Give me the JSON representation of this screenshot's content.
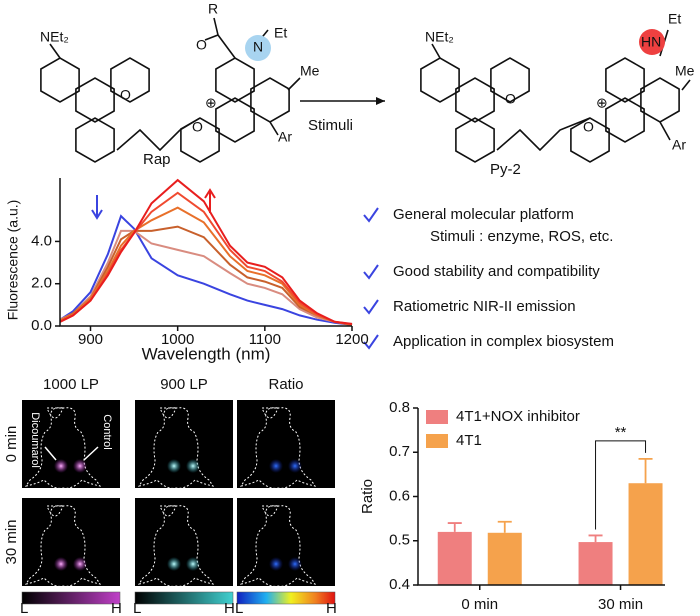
{
  "scheme": {
    "reactant": {
      "amine": "NEt₂",
      "acyl_r": "R",
      "carbonyl_o": "O",
      "nitrogen": "N",
      "ethyl": "Et",
      "methyl": "Me",
      "ring_o": "O",
      "oxonium": "O",
      "charge": "⊕",
      "aryl": "Ar",
      "name": "Rap"
    },
    "stimulus": "Stimuli",
    "product": {
      "amine": "NEt₂",
      "nitrogen": "HN",
      "ethyl": "Et",
      "methyl": "Me",
      "ring_o": "O",
      "oxonium": "O",
      "charge": "⊕",
      "aryl": "Ar",
      "name": "Py-2"
    }
  },
  "features": [
    {
      "text": "General molecular platform",
      "detail": "Stimuli : enzyme, ROS, etc."
    },
    {
      "text": "Good stability and compatibility"
    },
    {
      "text": "Ratiometric NIR-II emission"
    },
    {
      "text": "Application in complex biosystem"
    }
  ],
  "imaging": {
    "columns": [
      "1000 LP",
      "900 LP",
      "Ratio"
    ],
    "rows": [
      "0 min",
      "30 min"
    ],
    "labels": [
      "Dicoumarol",
      "Control"
    ],
    "scale": {
      "low": "L",
      "high": "H"
    }
  },
  "chart_data": [
    {
      "type": "line",
      "xlabel": "Wavelength (nm)",
      "ylabel": "Fluorescence (a.u.)",
      "x": [
        865,
        880,
        900,
        920,
        935,
        950,
        970,
        1000,
        1030,
        1060,
        1080,
        1100,
        1120,
        1140,
        1160,
        1180,
        1200
      ],
      "series": [
        {
          "color": "#3a44e0",
          "values": [
            0.3,
            0.7,
            1.6,
            3.4,
            5.2,
            4.6,
            3.2,
            2.4,
            2.0,
            1.5,
            1.2,
            1.0,
            0.8,
            0.5,
            0.3,
            0.15,
            0.05
          ]
        },
        {
          "color": "#d98c80",
          "values": [
            0.3,
            0.6,
            1.4,
            3.0,
            4.5,
            4.5,
            3.9,
            3.6,
            3.3,
            2.5,
            2.0,
            1.8,
            1.5,
            0.8,
            0.4,
            0.2,
            0.05
          ]
        },
        {
          "color": "#c8602c",
          "values": [
            0.25,
            0.6,
            1.3,
            2.8,
            4.1,
            4.5,
            4.5,
            4.7,
            4.2,
            2.9,
            2.3,
            2.1,
            1.8,
            0.9,
            0.5,
            0.2,
            0.05
          ]
        },
        {
          "color": "#e8702a",
          "values": [
            0.25,
            0.55,
            1.3,
            2.6,
            3.8,
            4.5,
            5.0,
            5.6,
            4.9,
            3.3,
            2.6,
            2.4,
            2.0,
            1.0,
            0.5,
            0.2,
            0.05
          ]
        },
        {
          "color": "#f04a30",
          "values": [
            0.2,
            0.5,
            1.2,
            2.5,
            3.6,
            4.4,
            5.4,
            6.3,
            5.4,
            3.6,
            2.8,
            2.6,
            2.1,
            1.1,
            0.55,
            0.2,
            0.08
          ]
        },
        {
          "color": "#e81e1e",
          "values": [
            0.2,
            0.5,
            1.2,
            2.4,
            3.5,
            4.4,
            5.8,
            6.9,
            5.9,
            3.8,
            3.0,
            2.8,
            2.3,
            1.2,
            0.6,
            0.2,
            0.1
          ]
        }
      ],
      "xlim": [
        865,
        1200
      ],
      "xticks": [
        900,
        1000,
        1100,
        1200
      ],
      "ylim": [
        0,
        7
      ],
      "yticks": [
        {
          "value": 0,
          "label": "0.0"
        },
        {
          "value": 2,
          "label": "2.0"
        },
        {
          "value": 4,
          "label": "4.0"
        }
      ]
    },
    {
      "type": "bar",
      "ylabel": "Ratio",
      "categories": [
        "0 min",
        "30 min"
      ],
      "series": [
        {
          "name": "4T1+NOX inhibitor",
          "color": "#ef7f7f",
          "values": [
            0.52,
            0.497
          ],
          "errors": [
            0.02,
            0.015
          ]
        },
        {
          "name": "4T1",
          "color": "#f5a24c",
          "values": [
            0.518,
            0.63
          ],
          "errors": [
            0.025,
            0.055
          ]
        }
      ],
      "ylim": [
        0.4,
        0.8
      ],
      "yticks": [
        0.4,
        0.5,
        0.6,
        0.7,
        0.8
      ],
      "annotation": "**",
      "legend": "upper left"
    }
  ]
}
